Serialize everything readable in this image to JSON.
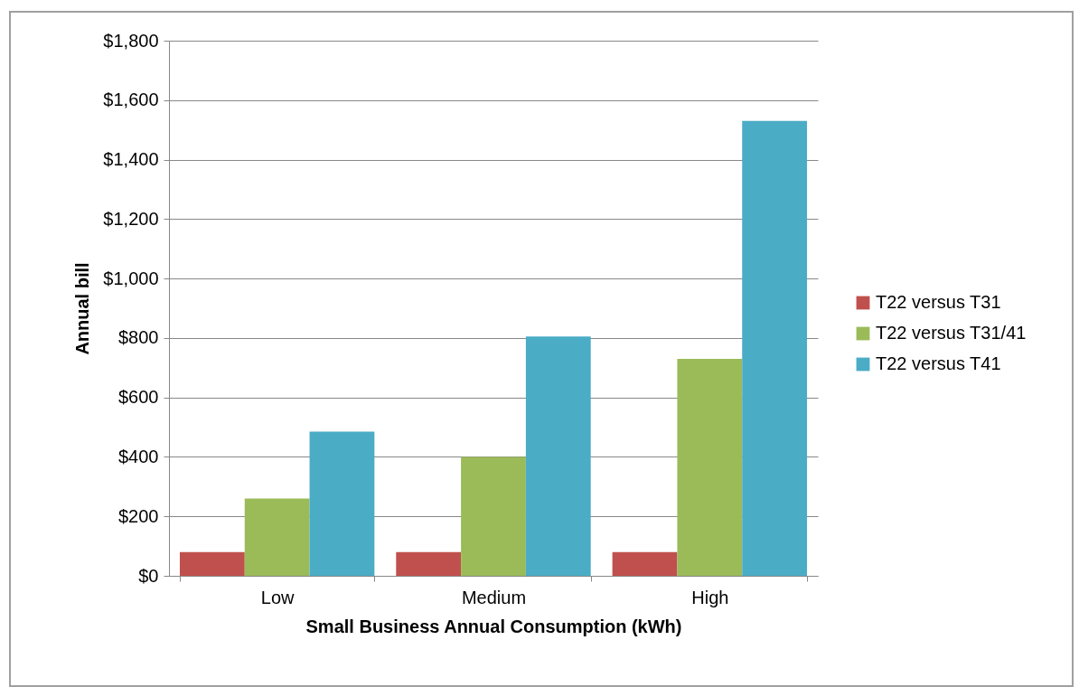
{
  "chart_data": {
    "type": "bar",
    "xlabel": "Small Business  Annual Consumption  (kWh)",
    "ylabel": "Annual bill",
    "categories": [
      "Low",
      "Medium",
      "High"
    ],
    "series": [
      {
        "name": "T22 versus T31",
        "color": "#c0504d",
        "values": [
          80,
          80,
          80
        ]
      },
      {
        "name": "T22 versus T31/41",
        "color": "#9bbb59",
        "values": [
          260,
          400,
          730
        ]
      },
      {
        "name": "T22 versus T41",
        "color": "#4bacc6",
        "values": [
          485,
          805,
          1530
        ]
      }
    ],
    "ylim": [
      0,
      1800
    ],
    "yticks": [
      {
        "value": 0,
        "label": "$0"
      },
      {
        "value": 200,
        "label": "$200"
      },
      {
        "value": 400,
        "label": "$400"
      },
      {
        "value": 600,
        "label": "$600"
      },
      {
        "value": 800,
        "label": "$800"
      },
      {
        "value": 1000,
        "label": "$1,000"
      },
      {
        "value": 1200,
        "label": "$1,200"
      },
      {
        "value": 1400,
        "label": "$1,400"
      },
      {
        "value": 1600,
        "label": "$1,600"
      },
      {
        "value": 1800,
        "label": "$1,800"
      }
    ],
    "grid": "y",
    "legend": "right"
  }
}
